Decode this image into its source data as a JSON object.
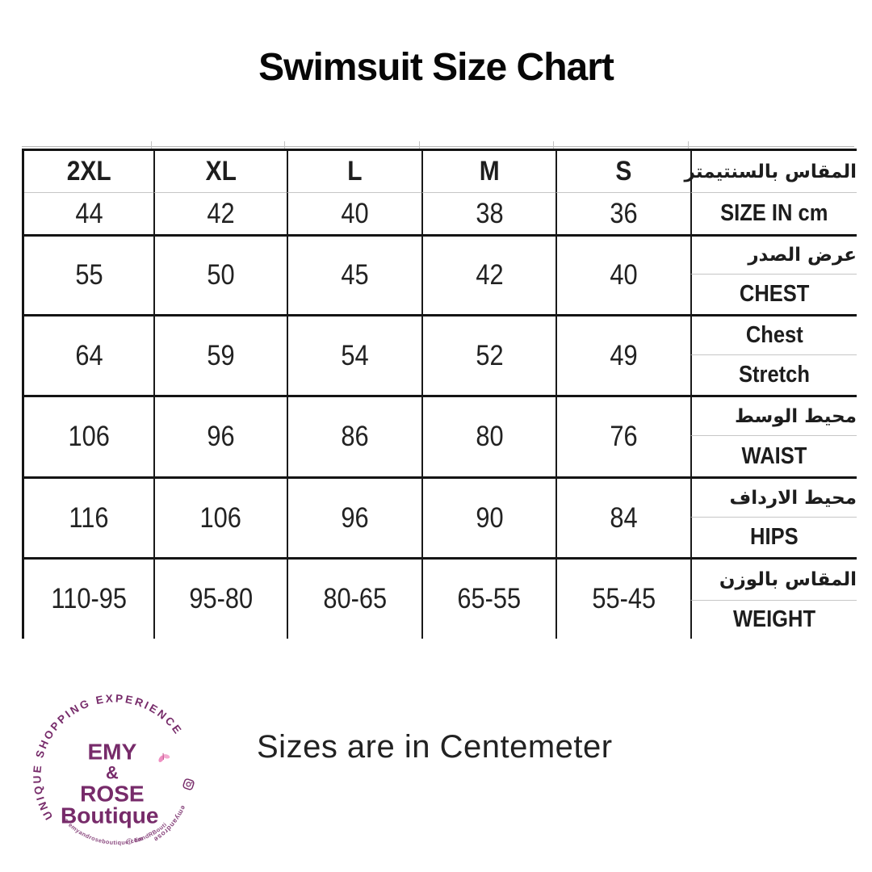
{
  "title": "Swimsuit Size Chart",
  "note": "Sizes are in Centemeter",
  "colors": {
    "purple": "#772b6a",
    "pink": "#ef8fc2",
    "border": "#141414",
    "thin_divider": "#c6c6c6"
  },
  "table": {
    "size_columns": [
      "2XL",
      "XL",
      "L",
      "M",
      "S"
    ],
    "header_label_ar": "المقاس بالسنتيمتر",
    "header_label_en": "SIZE IN cm",
    "size_values": [
      "44",
      "42",
      "40",
      "38",
      "36"
    ],
    "sections": [
      {
        "top": "عرض الصدر",
        "top_lang": "ar",
        "bottom": "CHEST",
        "values": [
          "55",
          "50",
          "45",
          "42",
          "40"
        ]
      },
      {
        "top": "Chest",
        "top_lang": "en",
        "bottom": "Stretch",
        "values": [
          "64",
          "59",
          "54",
          "52",
          "49"
        ]
      },
      {
        "top": "محيط الوسط",
        "top_lang": "ar",
        "bottom": "WAIST",
        "values": [
          "106",
          "96",
          "86",
          "80",
          "76"
        ]
      },
      {
        "top": "محيط الارداف",
        "top_lang": "ar",
        "bottom": "HIPS",
        "values": [
          "116",
          "106",
          "96",
          "90",
          "84"
        ]
      },
      {
        "top": "المقاس بالوزن",
        "top_lang": "ar",
        "bottom": "WEIGHT",
        "values": [
          "110-95",
          "95-80",
          "80-65",
          "65-55",
          "55-45"
        ]
      }
    ]
  },
  "chart_data": {
    "type": "table",
    "title": "Swimsuit Size Chart",
    "columns": [
      "2XL",
      "XL",
      "L",
      "M",
      "S"
    ],
    "rows": [
      {
        "label_ar": "المقاس بالسنتيمتر",
        "label_en": "SIZE IN cm",
        "values": [
          44,
          42,
          40,
          38,
          36
        ]
      },
      {
        "label_ar": "عرض الصدر",
        "label_en": "CHEST",
        "values": [
          55,
          50,
          45,
          42,
          40
        ]
      },
      {
        "label_en_top": "Chest",
        "label_en": "Stretch",
        "values": [
          64,
          59,
          54,
          52,
          49
        ]
      },
      {
        "label_ar": "محيط الوسط",
        "label_en": "WAIST",
        "values": [
          106,
          96,
          86,
          80,
          76
        ]
      },
      {
        "label_ar": "محيط الارداف",
        "label_en": "HIPS",
        "values": [
          116,
          106,
          96,
          90,
          84
        ]
      },
      {
        "label_ar": "المقاس بالوزن",
        "label_en": "WEIGHT",
        "values": [
          "110-95",
          "95-80",
          "80-65",
          "65-55",
          "55-45"
        ]
      }
    ],
    "note": "Sizes are in Centemeter"
  },
  "logo": {
    "arc_text": "UNIQUE SHOPPING EXPERIENCE",
    "line1": "EMY",
    "line2": "&",
    "line3": "ROSE",
    "line4": "Boutique",
    "side_text": "emyandroseboutique",
    "bottom_text": "⊕ emyandroseboutique.com",
    "bottom_text2": "ⓕ EandRBoutique"
  }
}
